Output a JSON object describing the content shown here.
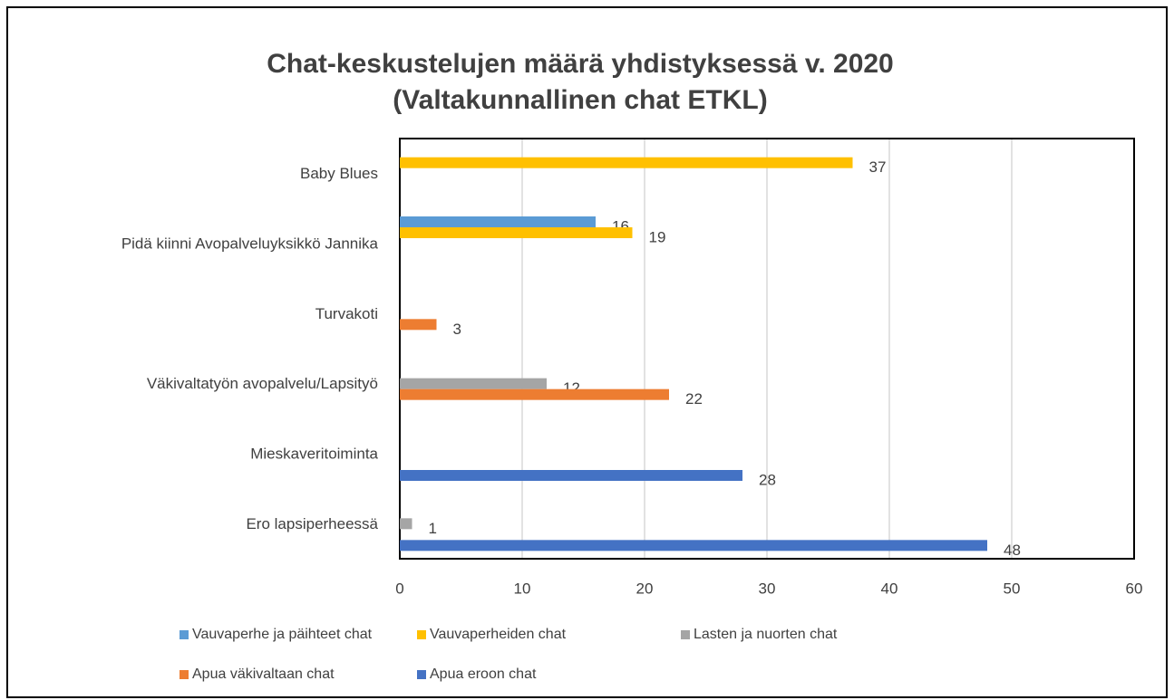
{
  "chart_data": {
    "type": "bar",
    "orientation": "horizontal",
    "title": [
      "Chat-keskustelujen määrä yhdistyksessä v. 2020",
      "(Valtakunnallinen chat ETKL)"
    ],
    "categories": [
      "Baby Blues",
      "Pidä kiinni Avopalveluyksikkö Jannika",
      "Turvakoti",
      "Väkivaltatyön avopalvelu/Lapsityö",
      "Mieskaveritoiminta",
      "Ero lapsiperheessä"
    ],
    "series": [
      {
        "name": "Vauvaperhe ja päihteet chat",
        "color": "#5b9bd5",
        "values": [
          null,
          16,
          null,
          null,
          null,
          null
        ]
      },
      {
        "name": "Vauvaperheiden chat",
        "color": "#ffc000",
        "values": [
          37,
          19,
          null,
          null,
          null,
          null
        ]
      },
      {
        "name": "Lasten ja nuorten chat",
        "color": "#a5a5a5",
        "values": [
          null,
          null,
          null,
          12,
          null,
          1
        ]
      },
      {
        "name": "Apua väkivaltaan chat",
        "color": "#ed7d31",
        "values": [
          null,
          null,
          3,
          22,
          null,
          null
        ]
      },
      {
        "name": "Apua eroon chat",
        "color": "#4472c4",
        "values": [
          null,
          null,
          null,
          null,
          28,
          48
        ]
      }
    ],
    "xlim": [
      0,
      60
    ],
    "xticks": [
      0,
      10,
      20,
      30,
      40,
      50,
      60
    ],
    "grid": true,
    "legend": "bottom"
  }
}
